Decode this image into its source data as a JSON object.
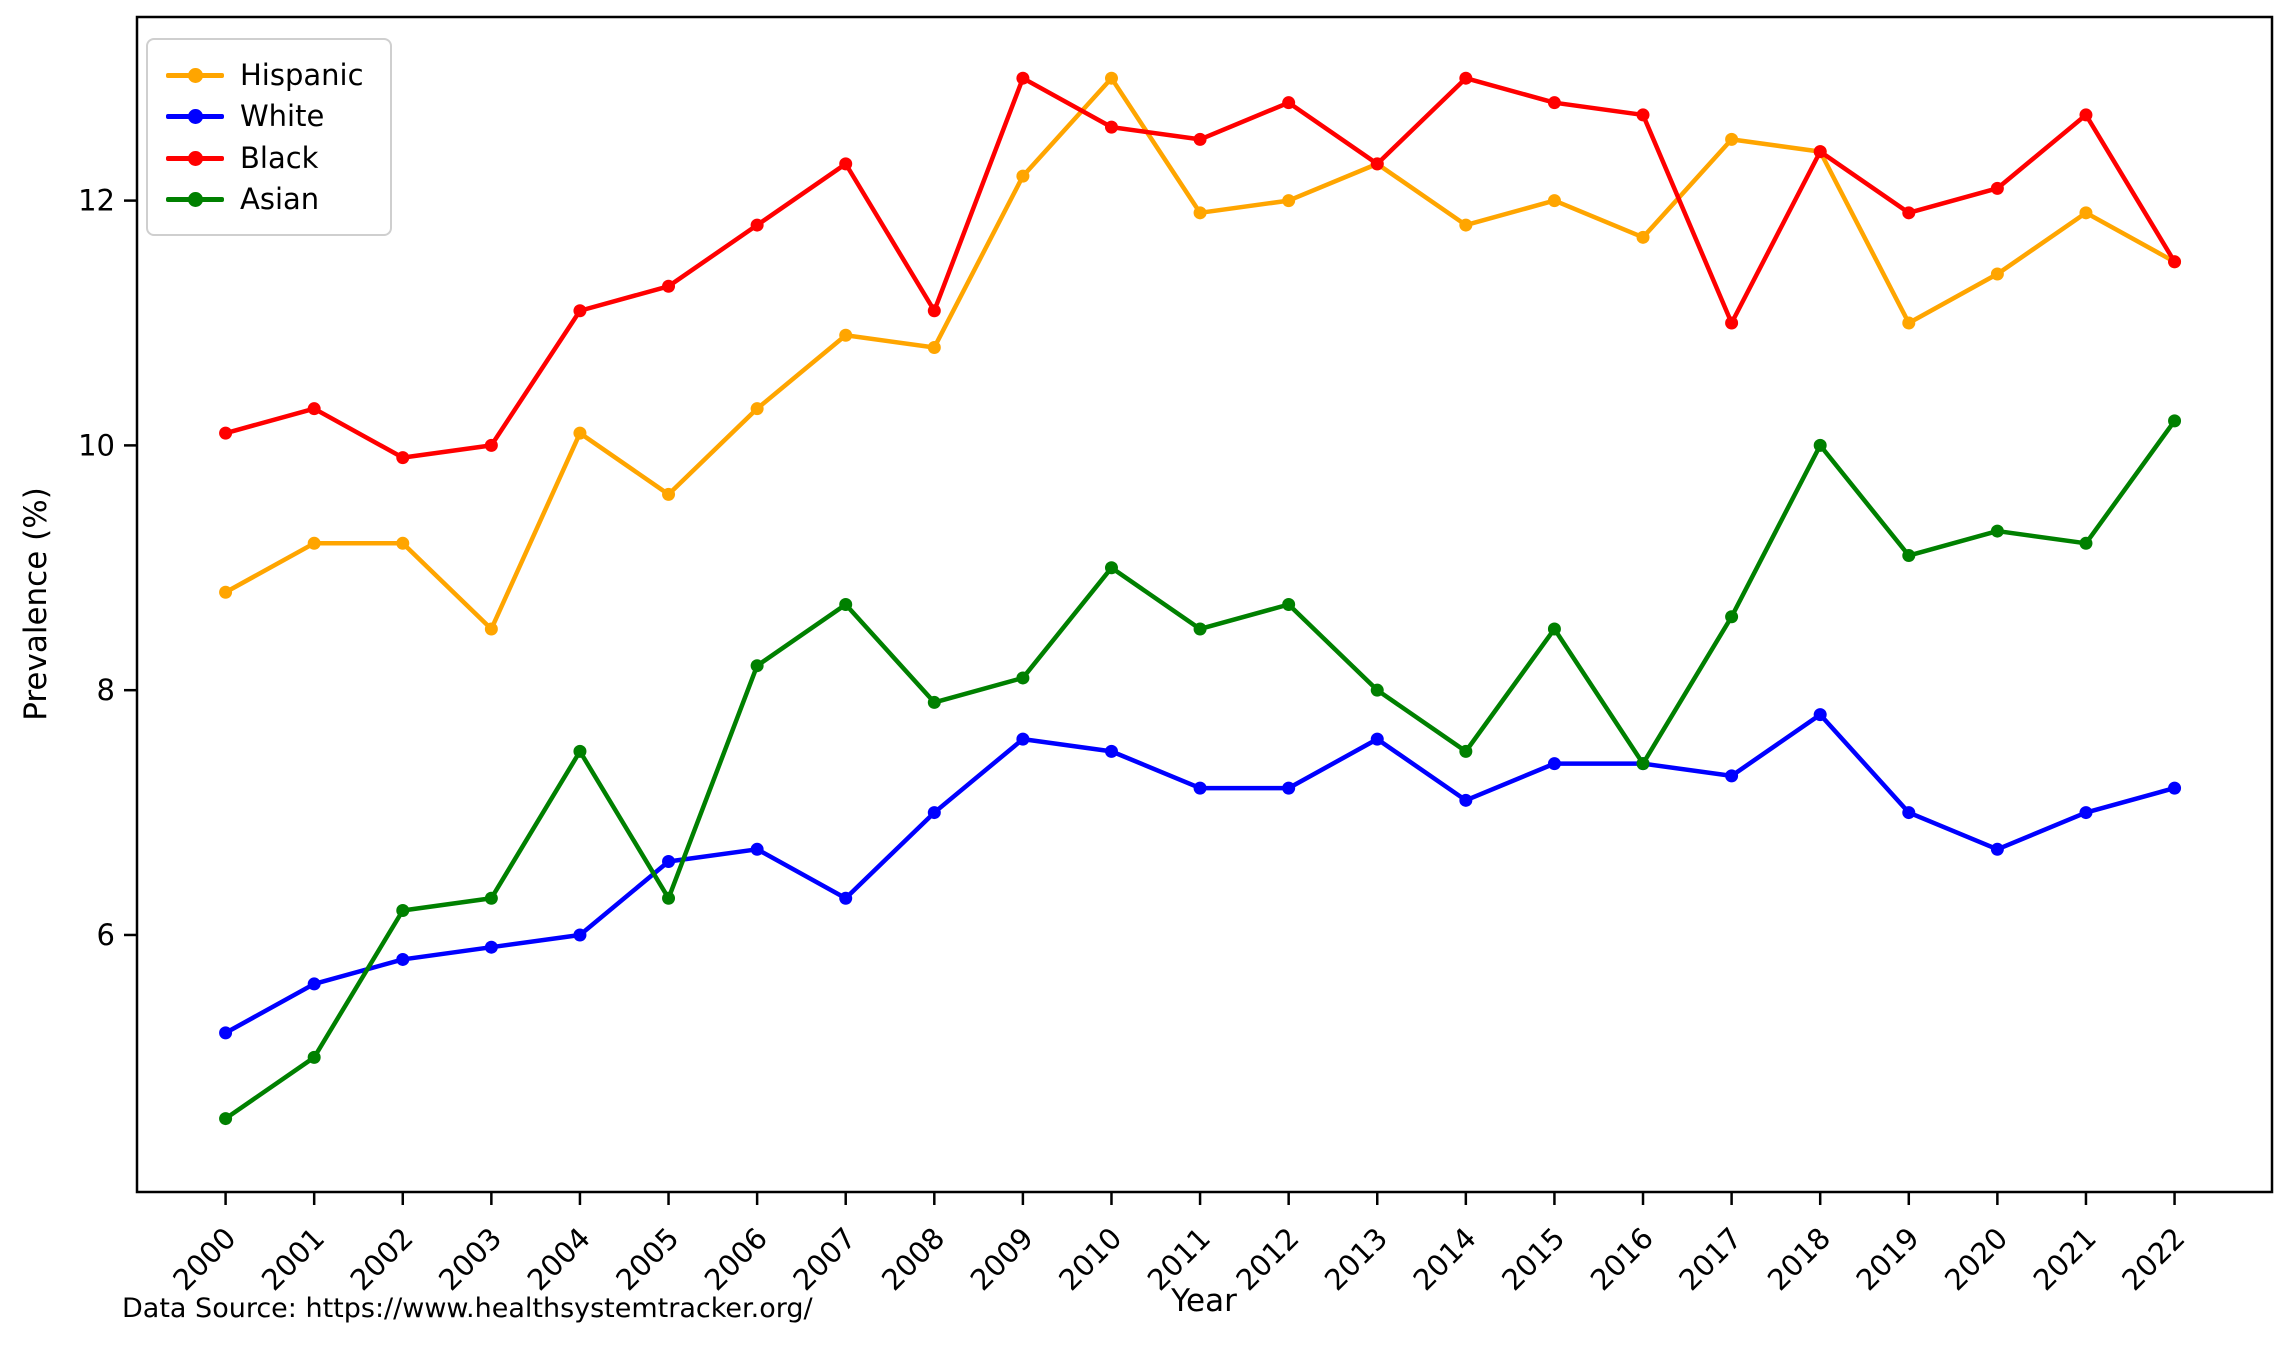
{
  "chart_data": {
    "type": "line",
    "title": "",
    "xlabel": "Year",
    "ylabel": "Prevalence (%)",
    "x": [
      2000,
      2001,
      2002,
      2003,
      2004,
      2005,
      2006,
      2007,
      2008,
      2009,
      2010,
      2011,
      2012,
      2013,
      2014,
      2015,
      2016,
      2017,
      2018,
      2019,
      2020,
      2021,
      2022
    ],
    "series": [
      {
        "name": "Hispanic",
        "color": "#FFA500",
        "values": [
          8.8,
          9.2,
          9.2,
          8.5,
          10.1,
          9.6,
          10.3,
          10.9,
          10.8,
          12.2,
          13.0,
          11.9,
          12.0,
          12.3,
          11.8,
          12.0,
          11.7,
          12.5,
          12.4,
          11.0,
          11.4,
          11.9,
          11.5
        ]
      },
      {
        "name": "White",
        "color": "#0000FF",
        "values": [
          5.2,
          5.6,
          5.8,
          5.9,
          6.0,
          6.6,
          6.7,
          6.3,
          7.0,
          7.6,
          7.5,
          7.2,
          7.2,
          7.6,
          7.1,
          7.4,
          7.4,
          7.3,
          7.8,
          7.0,
          6.7,
          7.0,
          7.2
        ]
      },
      {
        "name": "Black",
        "color": "#FF0000",
        "values": [
          10.1,
          10.3,
          9.9,
          10.0,
          11.1,
          11.3,
          11.8,
          12.3,
          11.1,
          13.0,
          12.6,
          12.5,
          12.8,
          12.3,
          13.0,
          12.8,
          12.7,
          11.0,
          12.4,
          11.9,
          12.1,
          12.7,
          11.5
        ]
      },
      {
        "name": "Asian",
        "color": "#008000",
        "values": [
          4.5,
          5.0,
          6.2,
          6.3,
          7.5,
          6.3,
          8.2,
          8.7,
          7.9,
          8.1,
          9.0,
          8.5,
          8.7,
          8.0,
          7.5,
          8.5,
          7.4,
          8.6,
          10.0,
          9.1,
          9.3,
          9.2,
          10.2
        ]
      }
    ],
    "xlim": [
      1999.0,
      2023.1
    ],
    "ylim": [
      3.9,
      13.5
    ],
    "yticks": [
      6,
      8,
      10,
      12
    ],
    "grid": false,
    "legend_position": "upper left",
    "marker": "circle",
    "axis_color": "#000000"
  },
  "footer": {
    "data_source": "Data Source: https://www.healthsystemtracker.org/"
  }
}
